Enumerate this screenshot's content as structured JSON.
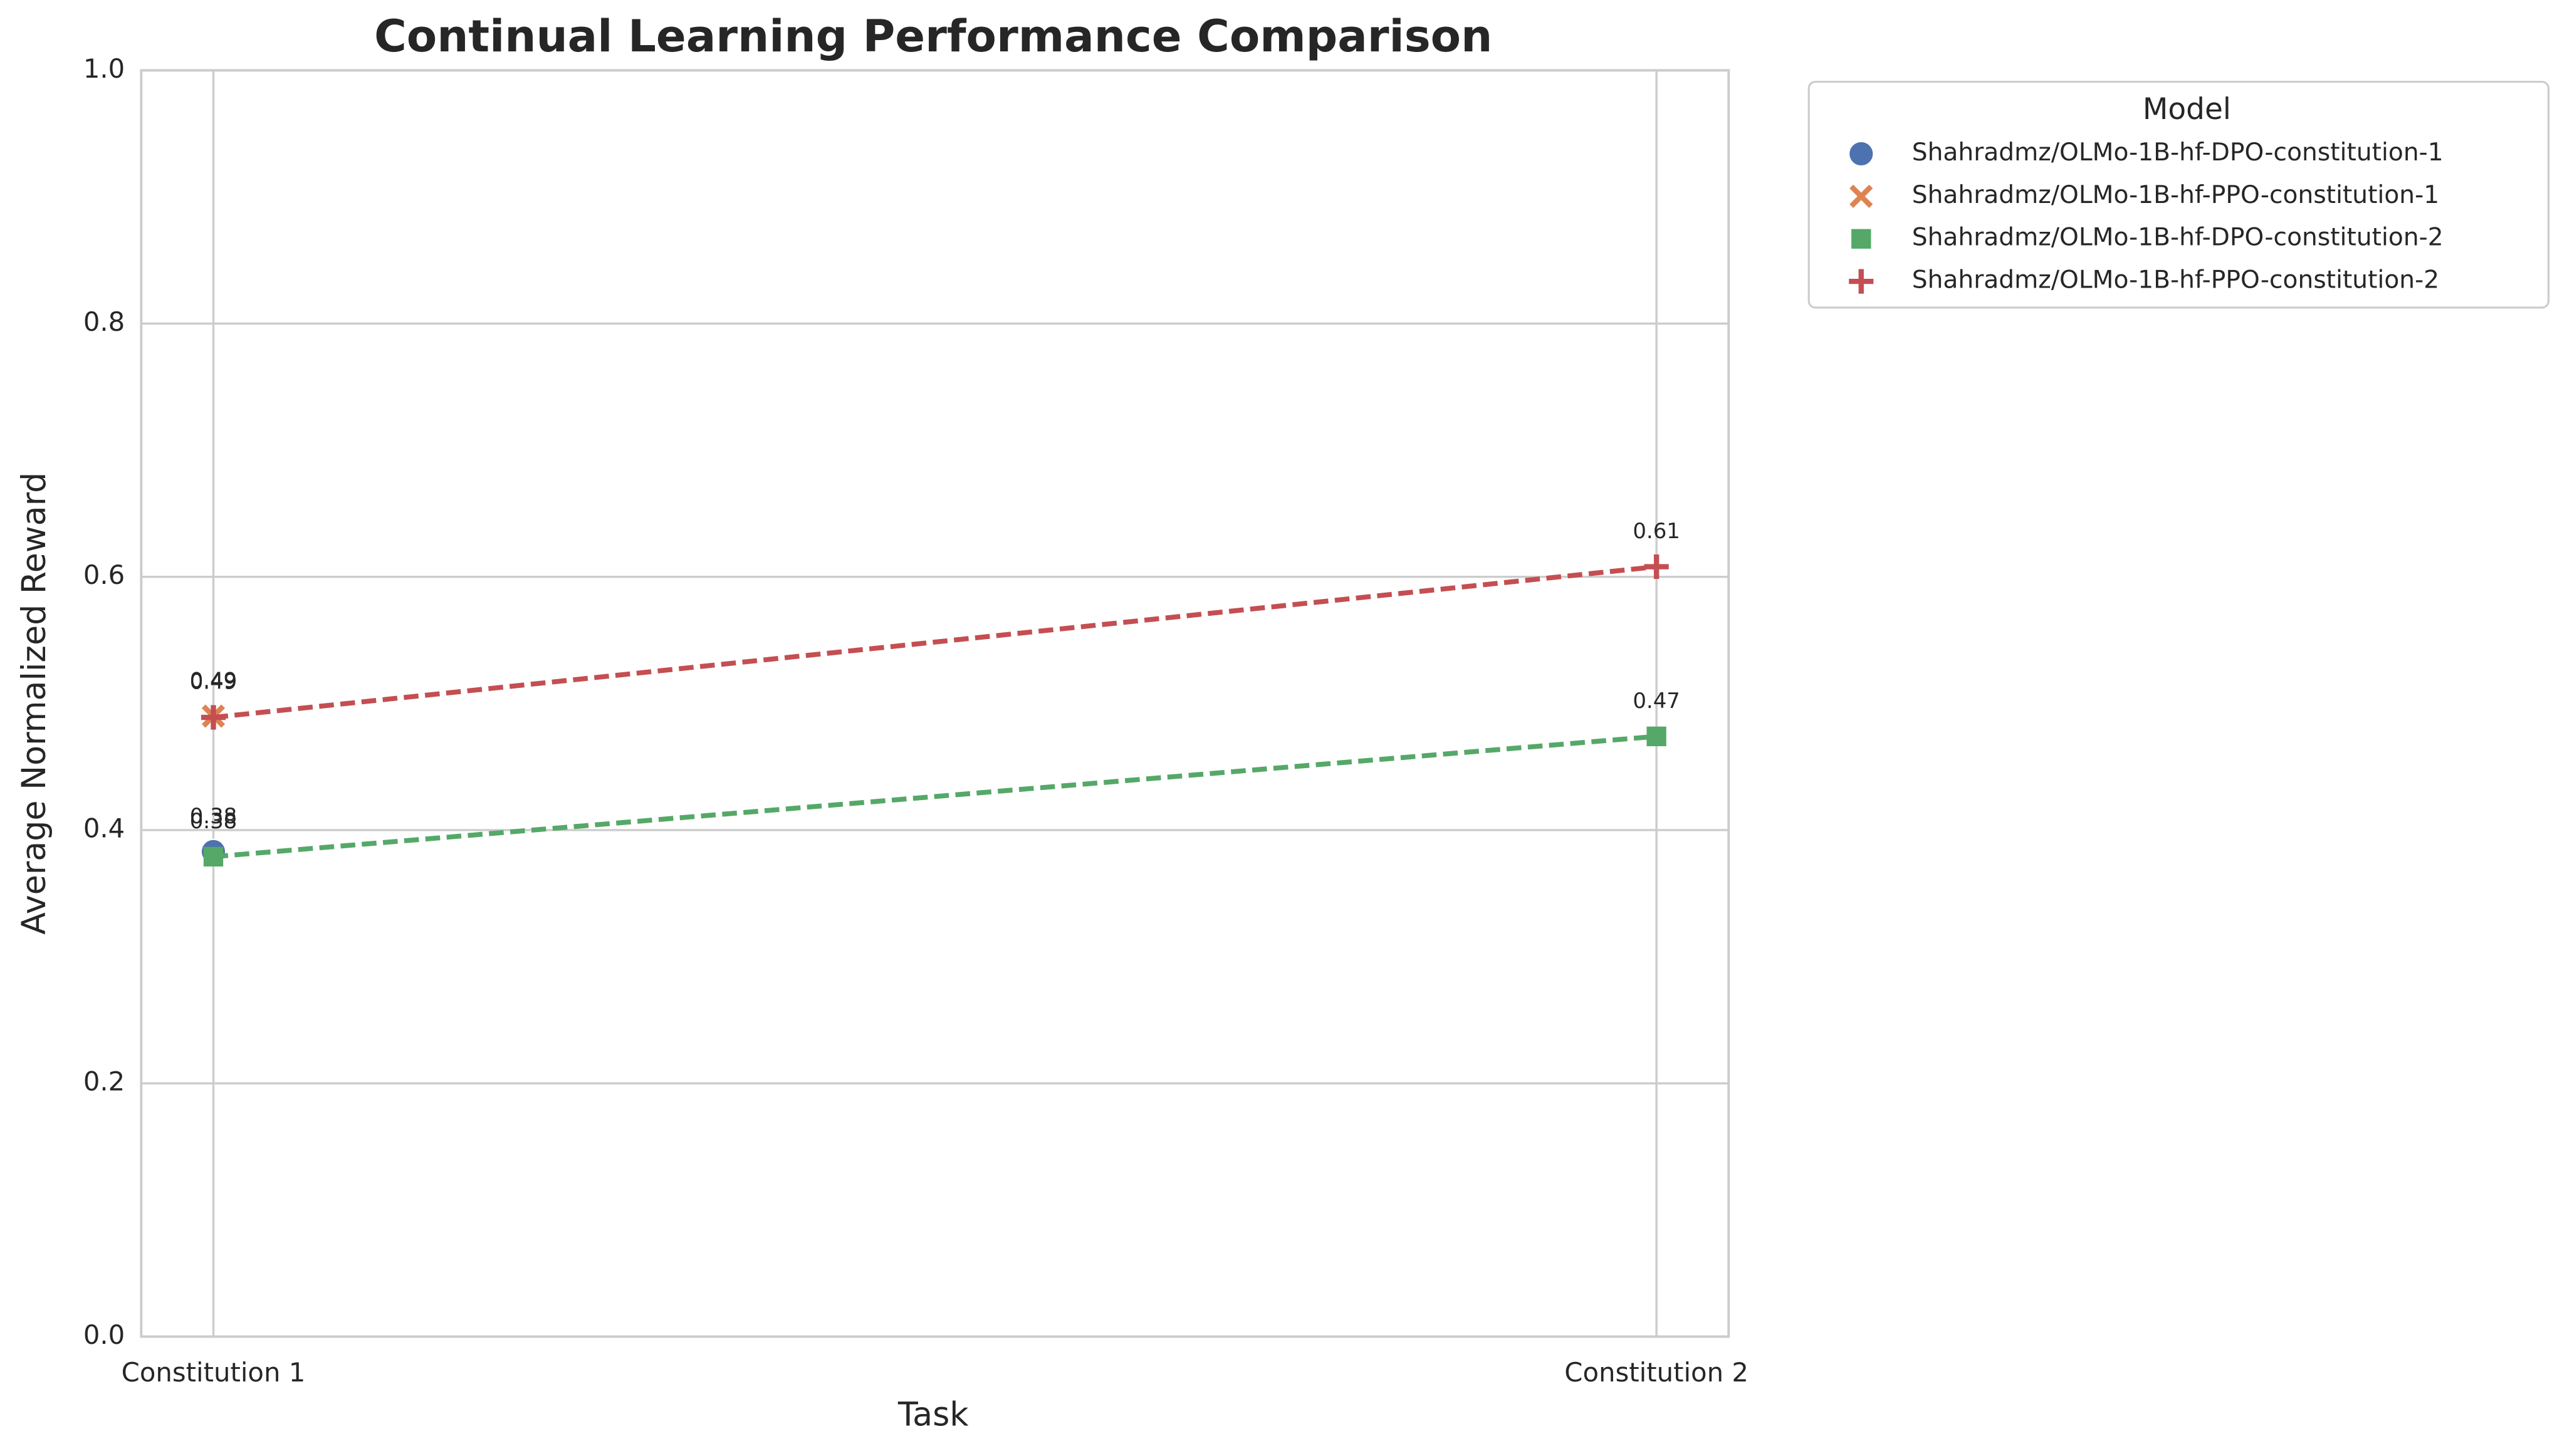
{
  "chart_data": {
    "type": "line",
    "title": "Continual Learning Performance Comparison",
    "x_label": "Task",
    "y_label": "Average Normalized Reward",
    "categories": [
      "Constitution 1",
      "Constitution 2"
    ],
    "legend_title": "Model",
    "legend": "outside upper right",
    "grid": true,
    "ylim": [
      0,
      1
    ],
    "yticks": [
      0.0,
      0.2,
      0.4,
      0.6,
      0.8,
      1.0
    ],
    "series": [
      {
        "name": "Shahradmz/OLMo-1B-hf-DPO-constitution-1",
        "color": "#4c72b0",
        "marker": "circle",
        "values": [
          0.383,
          null
        ],
        "value_labels": [
          "0.38",
          null
        ]
      },
      {
        "name": "Shahradmz/OLMo-1B-hf-PPO-constitution-1",
        "color": "#dd8452",
        "marker": "x",
        "values": [
          0.49,
          null
        ],
        "value_labels": [
          "0.49",
          null
        ]
      },
      {
        "name": "Shahradmz/OLMo-1B-hf-DPO-constitution-2",
        "color": "#55a868",
        "marker": "square",
        "values": [
          0.379,
          0.474
        ],
        "value_labels": [
          "0.38",
          "0.47"
        ]
      },
      {
        "name": "Shahradmz/OLMo-1B-hf-PPO-constitution-2",
        "color": "#c44e52",
        "marker": "plus",
        "values": [
          0.489,
          0.608
        ],
        "value_labels": [
          "0.49",
          "0.61"
        ]
      }
    ]
  }
}
